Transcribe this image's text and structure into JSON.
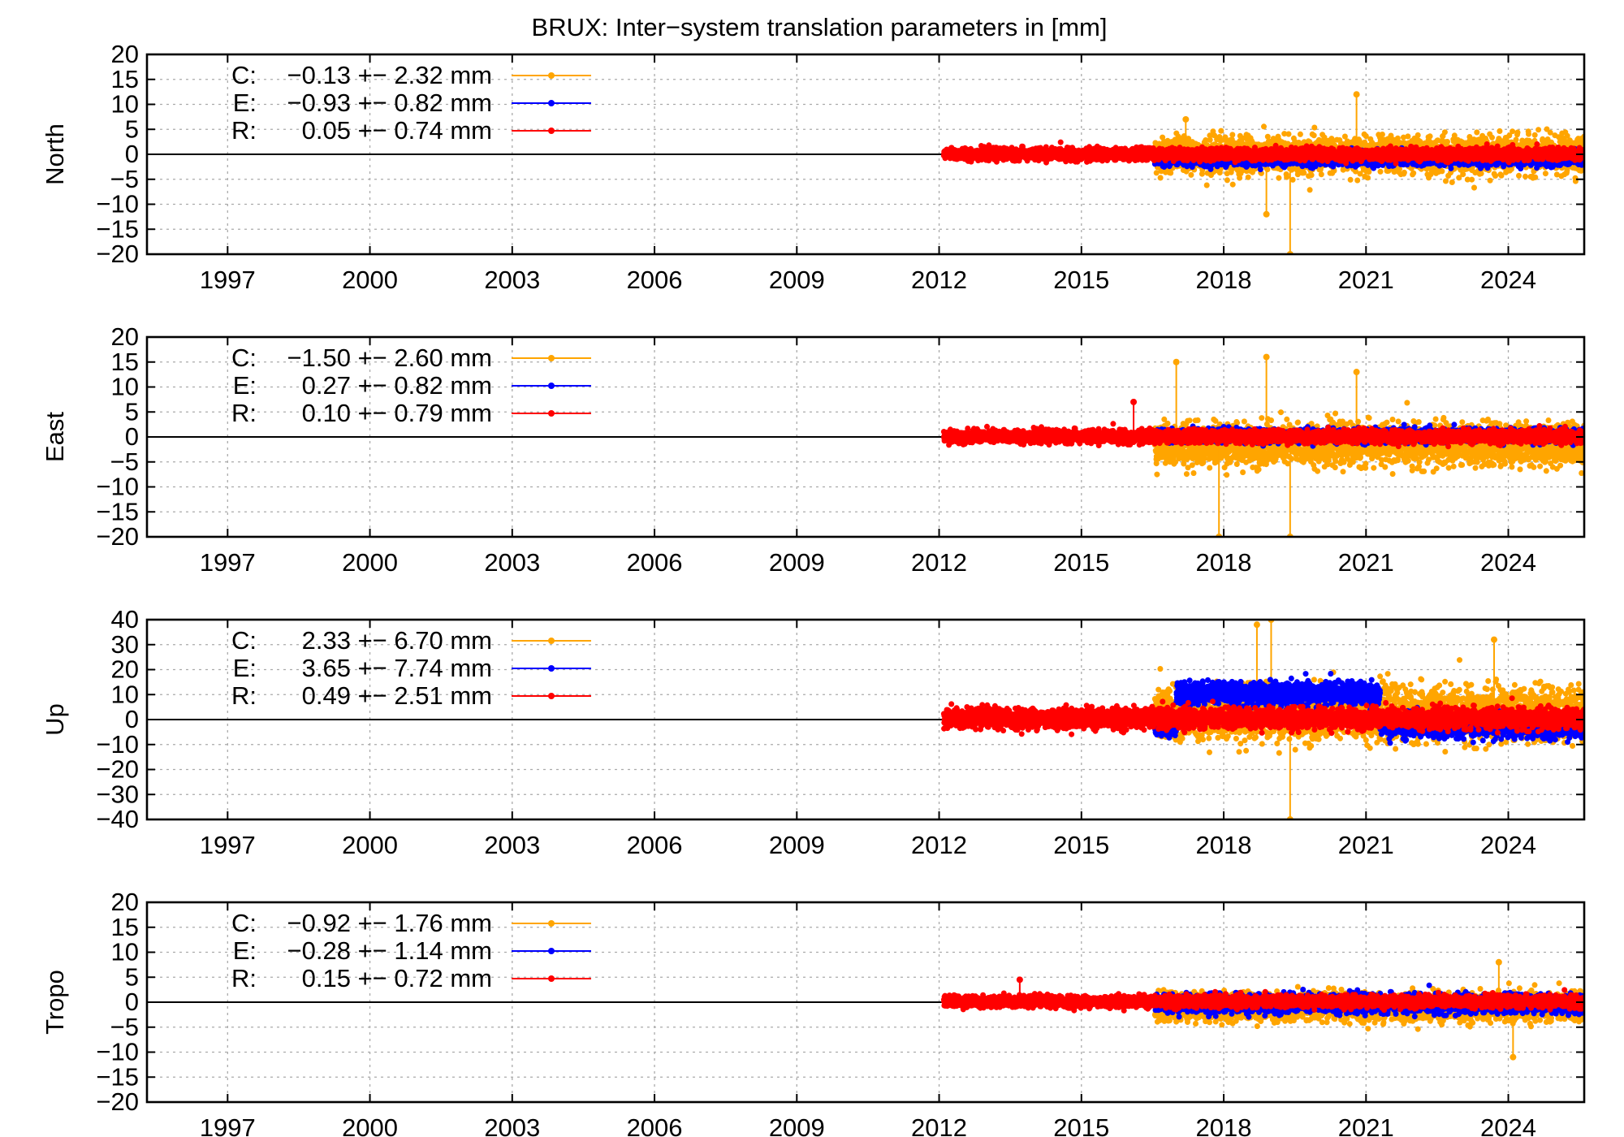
{
  "title": "BRUX: Inter−system translation parameters in [mm]",
  "colors": {
    "C": "#ffa500",
    "E": "#0000ff",
    "R": "#ff0000"
  },
  "chart_data": [
    {
      "type": "scatter",
      "ylabel": "North",
      "ylim": [
        -20,
        20
      ],
      "yticks": [
        -20,
        -15,
        -10,
        -5,
        0,
        5,
        10,
        15,
        20
      ],
      "ytick_labels": [
        "−20",
        "−15",
        "−10",
        "−5",
        "0",
        "5",
        "10",
        "15",
        "20"
      ],
      "xlim": [
        1995.3,
        2025.6
      ],
      "xticks": [
        1997,
        2000,
        2003,
        2006,
        2009,
        2012,
        2015,
        2018,
        2021,
        2024
      ],
      "xtick_labels": [
        "1997",
        "2000",
        "2003",
        "2006",
        "2009",
        "2012",
        "2015",
        "2018",
        "2021",
        "2024"
      ],
      "grid": true,
      "legend": "top-left",
      "series": [
        {
          "key": "C",
          "name": "C:",
          "label": "−0.13 +− 2.32 mm",
          "mean": -0.13,
          "std": 2.32,
          "start": 2016.55,
          "end": 2025.6,
          "spikes": [
            [
              2020.8,
              12
            ],
            [
              2019.4,
              -20
            ],
            [
              2018.9,
              -12
            ],
            [
              2017.2,
              7
            ]
          ]
        },
        {
          "key": "E",
          "name": "E:",
          "label": "−0.93 +− 0.82 mm",
          "mean": -0.93,
          "std": 0.82,
          "start": 2016.55,
          "end": 2025.6,
          "spikes": []
        },
        {
          "key": "R",
          "name": "R:",
          "label": "0.05 +− 0.74 mm",
          "mean": 0.05,
          "std": 0.74,
          "start": 2012.1,
          "end": 2025.6,
          "spikes": []
        }
      ]
    },
    {
      "type": "scatter",
      "ylabel": "East",
      "ylim": [
        -20,
        20
      ],
      "yticks": [
        -20,
        -15,
        -10,
        -5,
        0,
        5,
        10,
        15,
        20
      ],
      "ytick_labels": [
        "−20",
        "−15",
        "−10",
        "−5",
        "0",
        "5",
        "10",
        "15",
        "20"
      ],
      "xlim": [
        1995.3,
        2025.6
      ],
      "xticks": [
        1997,
        2000,
        2003,
        2006,
        2009,
        2012,
        2015,
        2018,
        2021,
        2024
      ],
      "xtick_labels": [
        "1997",
        "2000",
        "2003",
        "2006",
        "2009",
        "2012",
        "2015",
        "2018",
        "2021",
        "2024"
      ],
      "grid": true,
      "legend": "top-left",
      "series": [
        {
          "key": "C",
          "name": "C:",
          "label": "−1.50 +− 2.60 mm",
          "mean": -1.5,
          "std": 2.6,
          "start": 2016.55,
          "end": 2025.6,
          "spikes": [
            [
              2017.0,
              15
            ],
            [
              2018.9,
              16
            ],
            [
              2020.8,
              13
            ],
            [
              2019.4,
              -20
            ],
            [
              2017.9,
              -20
            ]
          ]
        },
        {
          "key": "E",
          "name": "E:",
          "label": "0.27 +− 0.82 mm",
          "mean": 0.27,
          "std": 0.82,
          "start": 2016.55,
          "end": 2025.6,
          "spikes": []
        },
        {
          "key": "R",
          "name": "R:",
          "label": "0.10 +− 0.79 mm",
          "mean": 0.1,
          "std": 0.79,
          "start": 2012.1,
          "end": 2025.6,
          "spikes": [
            [
              2016.1,
              7
            ]
          ]
        }
      ]
    },
    {
      "type": "scatter",
      "ylabel": "Up",
      "ylim": [
        -40,
        40
      ],
      "yticks": [
        -40,
        -30,
        -20,
        -10,
        0,
        10,
        20,
        30,
        40
      ],
      "ytick_labels": [
        "−40",
        "−30",
        "−20",
        "−10",
        "0",
        "10",
        "20",
        "30",
        "40"
      ],
      "xlim": [
        1995.3,
        2025.6
      ],
      "xticks": [
        1997,
        2000,
        2003,
        2006,
        2009,
        2012,
        2015,
        2018,
        2021,
        2024
      ],
      "xtick_labels": [
        "1997",
        "2000",
        "2003",
        "2006",
        "2009",
        "2012",
        "2015",
        "2018",
        "2021",
        "2024"
      ],
      "grid": true,
      "legend": "top-left",
      "series": [
        {
          "key": "C",
          "name": "C:",
          "label": "2.33 +− 6.70 mm",
          "mean": 2.33,
          "std": 6.7,
          "start": 2016.55,
          "end": 2025.6,
          "spikes": [
            [
              2019.0,
              40
            ],
            [
              2019.4,
              -40
            ],
            [
              2023.7,
              32
            ],
            [
              2018.7,
              38
            ]
          ]
        },
        {
          "key": "E",
          "name": "E:",
          "label": "3.65 +− 7.74 mm",
          "mean": 3.65,
          "std": 7.74,
          "start": 2016.55,
          "end": 2025.6,
          "spikes": []
        },
        {
          "key": "R",
          "name": "R:",
          "label": "0.49 +− 2.51 mm",
          "mean": 0.49,
          "std": 2.51,
          "start": 2012.1,
          "end": 2025.6,
          "spikes": []
        }
      ]
    },
    {
      "type": "scatter",
      "ylabel": "Tropo",
      "ylim": [
        -20,
        20
      ],
      "yticks": [
        -20,
        -15,
        -10,
        -5,
        0,
        5,
        10,
        15,
        20
      ],
      "ytick_labels": [
        "−20",
        "−15",
        "−10",
        "−5",
        "0",
        "5",
        "10",
        "15",
        "20"
      ],
      "xlim": [
        1995.3,
        2025.6
      ],
      "xticks": [
        1997,
        2000,
        2003,
        2006,
        2009,
        2012,
        2015,
        2018,
        2021,
        2024
      ],
      "xtick_labels": [
        "1997",
        "2000",
        "2003",
        "2006",
        "2009",
        "2012",
        "2015",
        "2018",
        "2021",
        "2024"
      ],
      "grid": true,
      "legend": "top-left",
      "series": [
        {
          "key": "C",
          "name": "C:",
          "label": "−0.92 +− 1.76 mm",
          "mean": -0.92,
          "std": 1.76,
          "start": 2016.55,
          "end": 2025.6,
          "spikes": [
            [
              2023.8,
              8
            ],
            [
              2024.1,
              -11
            ]
          ]
        },
        {
          "key": "E",
          "name": "E:",
          "label": "−0.28 +− 1.14 mm",
          "mean": -0.28,
          "std": 1.14,
          "start": 2016.55,
          "end": 2025.6,
          "spikes": []
        },
        {
          "key": "R",
          "name": "R:",
          "label": "0.15 +− 0.72 mm",
          "mean": 0.15,
          "std": 0.72,
          "start": 2012.1,
          "end": 2025.6,
          "spikes": [
            [
              2013.7,
              4.5
            ]
          ]
        }
      ]
    }
  ]
}
